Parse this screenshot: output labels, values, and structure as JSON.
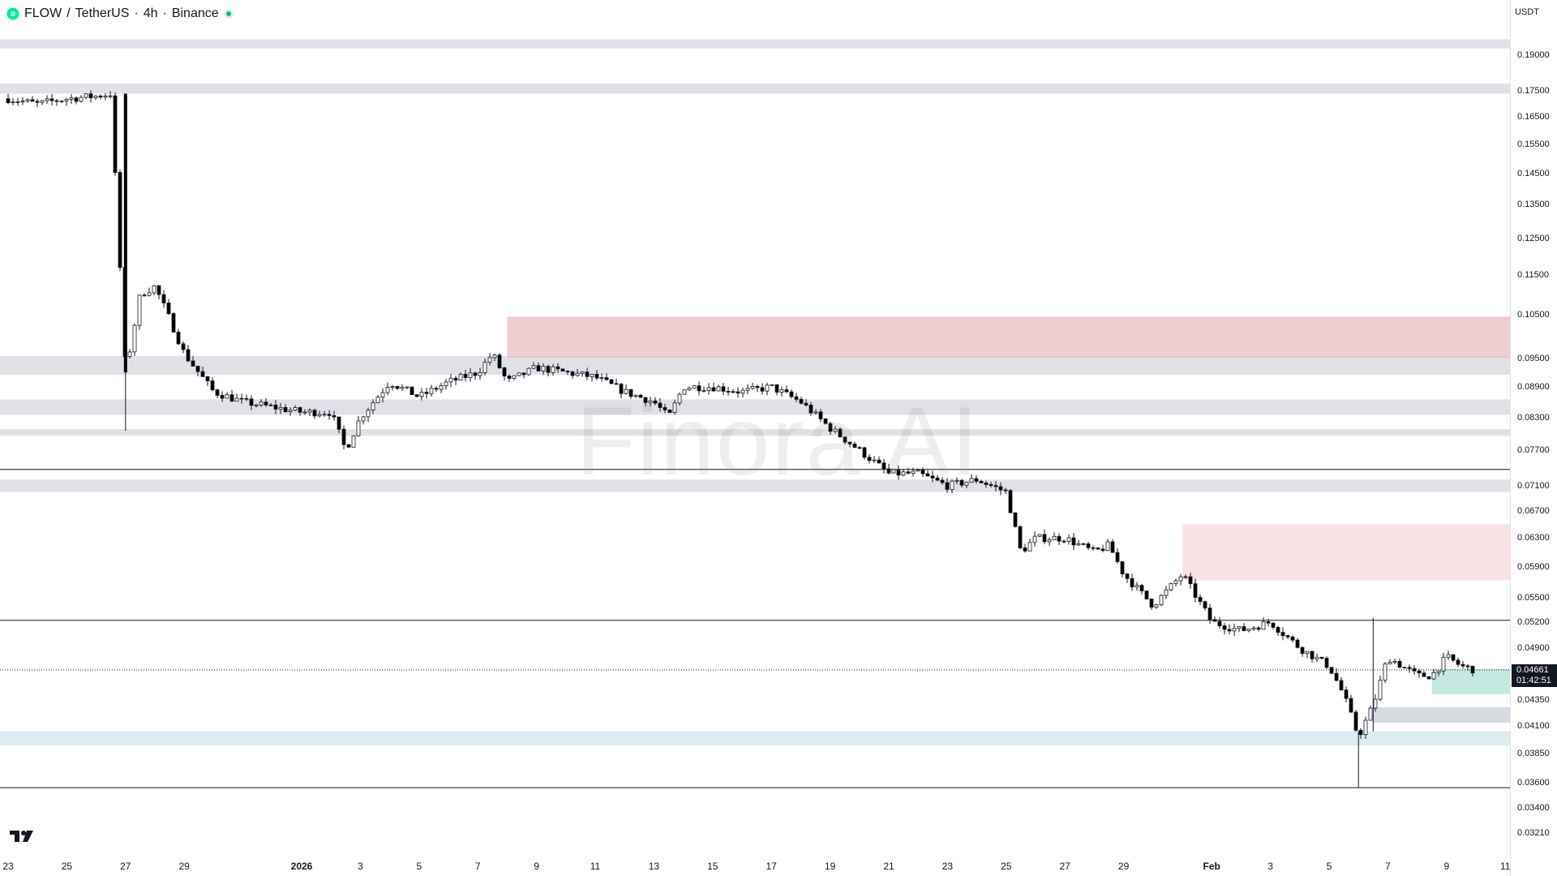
{
  "header": {
    "symbol": "FLOW",
    "separator": "/",
    "pair": "TetherUS",
    "interval": "4h",
    "exchange": "Binance",
    "status_color": "#22ab94"
  },
  "currency_label": "USDT",
  "watermark": "Finora AI",
  "last_price": {
    "value": "0.04661",
    "countdown": "01:42:51"
  },
  "price_axis": {
    "ticks": [
      "0.19000",
      "0.17500",
      "0.16500",
      "0.15500",
      "0.14500",
      "0.13500",
      "0.12500",
      "0.11500",
      "0.10500",
      "0.09500",
      "0.08900",
      "0.08300",
      "0.07700",
      "0.07100",
      "0.06700",
      "0.06300",
      "0.05900",
      "0.05500",
      "0.05200",
      "0.04900",
      "0.04350",
      "0.04100",
      "0.03850",
      "0.03600",
      "0.03400",
      "0.03210"
    ]
  },
  "time_axis": {
    "ticks": [
      "23",
      "25",
      "27",
      "29",
      "2026",
      "3",
      "5",
      "7",
      "9",
      "11",
      "13",
      "15",
      "17",
      "19",
      "21",
      "23",
      "25",
      "27",
      "29",
      "Feb",
      "3",
      "5",
      "7",
      "9",
      "11"
    ],
    "bold": [
      "2026",
      "Feb"
    ]
  },
  "colors": {
    "up_candle": "#ffffff",
    "down_candle": "#000000",
    "supply_zone": "#e8b9bd",
    "supply_zone_light": "#f7d5d7",
    "demand_zone": "#b8e5da",
    "level_band": "#d1d4dc",
    "support_band": "#dcecf0"
  },
  "chart_data": {
    "type": "candlestick",
    "series_name": "FLOW / TetherUS, 4h, Binance",
    "ylim": [
      0.0321,
      0.195
    ],
    "y_scale": "log",
    "grid": false,
    "x": [
      "Dec 23",
      "Dec 25",
      "Dec 27",
      "Dec 29",
      "Jan 1 2026",
      "Jan 3",
      "Jan 5",
      "Jan 7",
      "Jan 9",
      "Jan 11",
      "Jan 13",
      "Jan 15",
      "Jan 17",
      "Jan 19",
      "Jan 21",
      "Jan 23",
      "Jan 25",
      "Jan 27",
      "Jan 29",
      "Feb 1",
      "Feb 3",
      "Feb 5",
      "Feb 7",
      "Feb 9",
      "Feb 11"
    ],
    "close_path": [
      [
        "Dec 23",
        0.172
      ],
      [
        "Dec 24",
        0.17
      ],
      [
        "Dec 25",
        0.172
      ],
      [
        "Dec 26",
        0.173
      ],
      [
        "Dec 26.5",
        0.174
      ],
      [
        "Dec 27",
        0.092
      ],
      [
        "Dec 27.5",
        0.11
      ],
      [
        "Dec 28",
        0.112
      ],
      [
        "Dec 28.5",
        0.104
      ],
      [
        "Dec 29",
        0.096
      ],
      [
        "Dec 30",
        0.088
      ],
      [
        "Dec 31",
        0.086
      ],
      [
        "Jan 1 2026",
        0.084
      ],
      [
        "Jan 2",
        0.084
      ],
      [
        "Jan 2.5",
        0.077
      ],
      [
        "Jan 3",
        0.083
      ],
      [
        "Jan 4",
        0.09
      ],
      [
        "Jan 5",
        0.087
      ],
      [
        "Jan 6",
        0.09
      ],
      [
        "Jan 7",
        0.092
      ],
      [
        "Jan 7.5",
        0.096
      ],
      [
        "Jan 8",
        0.09
      ],
      [
        "Jan 9",
        0.093
      ],
      [
        "Jan 10",
        0.092
      ],
      [
        "Jan 11",
        0.091
      ],
      [
        "Jan 12",
        0.088
      ],
      [
        "Jan 13",
        0.086
      ],
      [
        "Jan 13.5",
        0.083
      ],
      [
        "Jan 14",
        0.089
      ],
      [
        "Jan 15",
        0.089
      ],
      [
        "Jan 16",
        0.088
      ],
      [
        "Jan 17",
        0.089
      ],
      [
        "Jan 18",
        0.086
      ],
      [
        "Jan 19",
        0.081
      ],
      [
        "Jan 20",
        0.077
      ],
      [
        "Jan 21",
        0.073
      ],
      [
        "Jan 22",
        0.073
      ],
      [
        "Jan 23",
        0.071
      ],
      [
        "Jan 24",
        0.072
      ],
      [
        "Jan 25",
        0.07
      ],
      [
        "Jan 25.5",
        0.061
      ],
      [
        "Jan 26",
        0.063
      ],
      [
        "Jan 27",
        0.063
      ],
      [
        "Jan 28",
        0.061
      ],
      [
        "Jan 28.5",
        0.062
      ],
      [
        "Jan 29",
        0.058
      ],
      [
        "Jan 30",
        0.054
      ],
      [
        "Jan 31",
        0.058
      ],
      [
        "Feb 1",
        0.052
      ],
      [
        "Feb 2",
        0.051
      ],
      [
        "Feb 3",
        0.052
      ],
      [
        "Feb 4",
        0.049
      ],
      [
        "Feb 5",
        0.047
      ],
      [
        "Feb 5.5",
        0.044
      ],
      [
        "Feb 6",
        0.04
      ],
      [
        "Feb 6.5",
        0.043
      ],
      [
        "Feb 7",
        0.048
      ],
      [
        "Feb 8",
        0.046
      ],
      [
        "Feb 8.5",
        0.046
      ],
      [
        "Feb 9",
        0.048
      ],
      [
        "Feb 9.5",
        0.047
      ],
      [
        "Feb 10",
        0.0466
      ]
    ],
    "annotations": {
      "horizontal_lines": [
        0.0737,
        0.0522,
        0.0356
      ],
      "dotted_current_price": 0.04661,
      "gray_bands": [
        [
          0.174,
          0.178
        ],
        [
          0.193,
          0.197
        ],
        [
          0.0915,
          0.0955
        ],
        [
          0.0835,
          0.0865
        ],
        [
          0.0796,
          0.0808
        ],
        [
          0.07,
          0.072
        ]
      ],
      "supply_zones": [
        [
          0.0952,
          0.1045,
          "Jan 8",
          "Feb 11"
        ],
        [
          0.0572,
          0.065,
          "Jan 31",
          "Feb 11"
        ]
      ],
      "demand_zones": [
        [
          0.0441,
          0.0467,
          "Feb 8.5",
          "Feb 11"
        ],
        [
          0.0413,
          0.0428,
          "Feb 6.5",
          "Feb 11"
        ]
      ],
      "support_band": [
        0.0392,
        0.0405
      ]
    }
  }
}
